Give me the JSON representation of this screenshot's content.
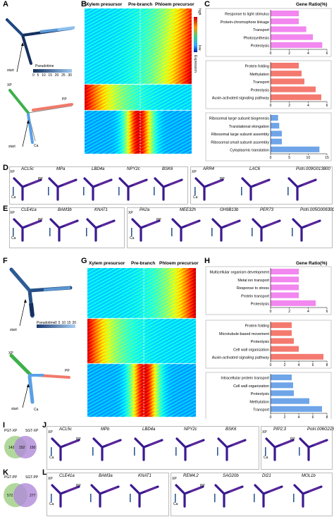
{
  "panels": {
    "A": "A",
    "B": "B",
    "C": "C",
    "D": "D",
    "E": "E",
    "F": "F",
    "G": "G",
    "H": "H",
    "I": "I",
    "J": "J",
    "K": "K",
    "L": "L"
  },
  "trajectory": {
    "pseudotime_label": "Pseudotime",
    "pseudotime_ticks": [
      "0",
      "5",
      "10",
      "15",
      "20",
      "25",
      "30"
    ],
    "pseudotime_ticks_F": [
      "0",
      "5",
      "10",
      "15",
      "20"
    ],
    "start": "start",
    "xp": "XP",
    "pp": "PP",
    "ca": "Ca"
  },
  "heatmap": {
    "col_labels": [
      "Xylem presursor",
      "Pre-branch",
      "Phloem precursor"
    ],
    "col_labels_G": [
      "Xylem presursor",
      "Pre-branch",
      "Phloem precursor"
    ],
    "legend_high": "high",
    "legend_low": "low",
    "legend_title": "Expression"
  },
  "barC": {
    "header": "Gene Ratio(%)",
    "groups": [
      {
        "color": "#f287ef",
        "terms": [
          "Response to light stimulus",
          "Protein-chromophore linkage",
          "Transport",
          "Photosynthesis",
          "Proteolysis"
        ],
        "values": [
          3.0,
          3.0,
          3.8,
          4.5,
          5.5
        ],
        "ticks": [
          "0",
          "2",
          "4",
          "6"
        ],
        "max": 6
      },
      {
        "color": "#f47a70",
        "terms": [
          "Protein folding",
          "Methylation",
          "Transport",
          "Proteolysis",
          "Auxin-activated signaling pathway"
        ],
        "values": [
          3.0,
          3.3,
          3.6,
          4.8,
          5.4
        ],
        "ticks": [
          "0",
          "2",
          "4",
          "6"
        ],
        "max": 6
      },
      {
        "color": "#6fa5e8",
        "terms": [
          "Ribosomal large subunit biogenesis",
          "Translational elongation",
          "Ribosomal large subunit assembly",
          "Ribosomal small subunit assembly",
          "Cytoplasmic translation"
        ],
        "values": [
          2.0,
          2.3,
          3.0,
          3.0,
          13.0
        ],
        "ticks": [
          "0",
          "5",
          "10",
          "15"
        ],
        "max": 15
      }
    ]
  },
  "barH": {
    "header": "Gene Ratio(%)",
    "groups": [
      {
        "color": "#f287ef",
        "terms": [
          "Multicellular organism development",
          "Metal ion transport",
          "Response to stress",
          "Protein transport",
          "Proteolysis"
        ],
        "values": [
          3.0,
          3.0,
          3.0,
          3.0,
          4.8
        ],
        "ticks": [
          "0",
          "2",
          "4",
          "6"
        ],
        "max": 6
      },
      {
        "color": "#f47a70",
        "terms": [
          "Protein folding",
          "Microtubule-based movement",
          "Proteolysis",
          "Cell wall organization",
          "Auxin-activated signaling pathway"
        ],
        "values": [
          3.0,
          3.0,
          3.3,
          4.0,
          7.5
        ],
        "ticks": [
          "0",
          "2",
          "4",
          "6",
          "8"
        ],
        "max": 8
      },
      {
        "color": "#6fa5e8",
        "terms": [
          "Intracellular protein transport",
          "Cell wall organization",
          "Proteolysis",
          "Methylation",
          "Transport"
        ],
        "values": [
          3.0,
          3.2,
          3.3,
          5.5,
          7.3
        ],
        "ticks": [
          "0",
          "2",
          "4",
          "6",
          "8"
        ],
        "max": 8
      }
    ]
  },
  "genes": {
    "D_left": [
      "ACL5c",
      "MPa",
      "LBD4a",
      "NPY2c",
      "BSK6"
    ],
    "D_right": [
      "ARR4",
      "LAC6",
      "Potri.009G013800"
    ],
    "E_left": [
      "CLE41a",
      "BAM3b",
      "KNAT1"
    ],
    "E_right": [
      "PA2a",
      "MEE32h",
      "GH9B13b",
      "PER73",
      "Potri.005G006300"
    ],
    "J_left": [
      "ACL5c",
      "MPb",
      "LBD4a",
      "NPY2c",
      "BSK6"
    ],
    "J_right": [
      "PIP2;3",
      "Potri.006G215300"
    ],
    "L_left": [
      "CLE41a",
      "BAM3a",
      "KNAT1"
    ],
    "L_right": [
      "REM4.2",
      "SAG20b",
      "DI21",
      "MOL1b"
    ]
  },
  "venn": {
    "I": {
      "left_label": "PGT-XP",
      "right_label": "SGT-XP",
      "left": "142",
      "both": "152",
      "right": "150"
    },
    "K": {
      "left_label": "PGT-PP",
      "right_label": "SGT-PP",
      "left": "572",
      "both": "",
      "right": "277"
    }
  },
  "colors": {
    "traj_dark": "#14305e",
    "traj_light": "#6aa6e8",
    "xp": "#3cb04a",
    "pp": "#f07a6a",
    "ca": "#5aa0e6",
    "expr_low": "#3a1a8f",
    "expr_high": "#ff3a2a"
  }
}
